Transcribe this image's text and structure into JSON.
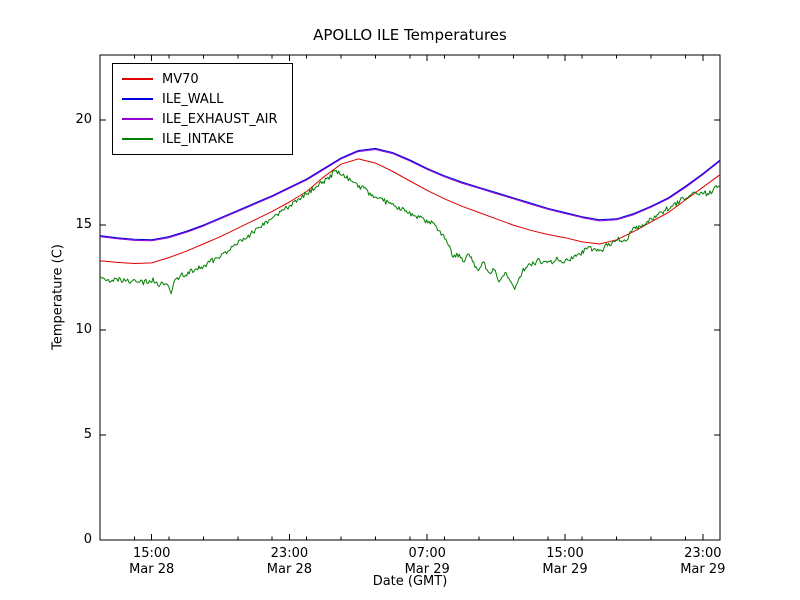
{
  "chart_data": {
    "type": "line",
    "title": "APOLLO ILE Temperatures",
    "xlabel": "Date (GMT)",
    "ylabel": "Temperature (C)",
    "x_unit": "hours since Mar 28 00:00 GMT",
    "xlim": [
      12,
      48
    ],
    "ylim": [
      0,
      23.1
    ],
    "grid": false,
    "legend_position": "upper-left",
    "x_major_ticks": [
      {
        "t": 15,
        "label_time": "15:00",
        "label_date": "Mar 28"
      },
      {
        "t": 23,
        "label_time": "23:00",
        "label_date": "Mar 28"
      },
      {
        "t": 31,
        "label_time": "07:00",
        "label_date": "Mar 29"
      },
      {
        "t": 39,
        "label_time": "15:00",
        "label_date": "Mar 29"
      },
      {
        "t": 47,
        "label_time": "23:00",
        "label_date": "Mar 29"
      }
    ],
    "x_minor_tick_step": 2,
    "y_major_ticks": [
      0,
      5,
      10,
      15,
      20
    ],
    "draw_order": [
      0,
      2,
      1,
      3
    ],
    "series": [
      {
        "name": "MV70",
        "color": "#dd0000",
        "x_start": 12,
        "x_step": 1,
        "values": [
          13.3,
          13.22,
          13.17,
          13.2,
          13.45,
          13.75,
          14.1,
          14.45,
          14.85,
          15.25,
          15.65,
          16.1,
          16.6,
          17.3,
          17.9,
          18.15,
          17.95,
          17.55,
          17.1,
          16.65,
          16.25,
          15.9,
          15.6,
          15.3,
          15.0,
          14.75,
          14.55,
          14.4,
          14.2,
          14.1,
          14.3,
          14.7,
          15.15,
          15.6,
          16.2,
          16.8,
          17.4
        ]
      },
      {
        "name": "ILE_WALL",
        "color": "#0000dd",
        "x_start": 12,
        "x_step": 1,
        "values": [
          14.5,
          14.4,
          14.32,
          14.3,
          14.45,
          14.7,
          15.0,
          15.35,
          15.7,
          16.05,
          16.4,
          16.8,
          17.2,
          17.7,
          18.2,
          18.55,
          18.65,
          18.45,
          18.1,
          17.7,
          17.35,
          17.05,
          16.8,
          16.55,
          16.3,
          16.05,
          15.8,
          15.6,
          15.4,
          15.25,
          15.3,
          15.55,
          15.9,
          16.3,
          16.85,
          17.45,
          18.1
        ]
      },
      {
        "name": "ILE_EXHAUST_AIR",
        "color": "#9400d3",
        "x_start": 12,
        "x_step": 1,
        "values": [
          14.45,
          14.35,
          14.27,
          14.25,
          14.4,
          14.65,
          14.95,
          15.3,
          15.65,
          16.0,
          16.35,
          16.75,
          17.15,
          17.65,
          18.15,
          18.5,
          18.6,
          18.4,
          18.05,
          17.65,
          17.3,
          17.0,
          16.75,
          16.5,
          16.25,
          16.0,
          15.75,
          15.55,
          15.35,
          15.2,
          15.25,
          15.5,
          15.85,
          16.25,
          16.8,
          17.4,
          18.05
        ]
      },
      {
        "name": "ILE_INTAKE",
        "color": "#007f00",
        "noise": {
          "amplitude": 0.13,
          "seed": 42,
          "step": 0.07
        },
        "points": [
          [
            12,
            12.45
          ],
          [
            12.5,
            12.3
          ],
          [
            13,
            12.45
          ],
          [
            13.5,
            12.3
          ],
          [
            14,
            12.4
          ],
          [
            14.5,
            12.25
          ],
          [
            15,
            12.4
          ],
          [
            15.5,
            12.15
          ],
          [
            15.9,
            12.3
          ],
          [
            16.1,
            11.75
          ],
          [
            16.4,
            12.45
          ],
          [
            17,
            12.7
          ],
          [
            17.5,
            12.85
          ],
          [
            18,
            13.05
          ],
          [
            18.5,
            13.3
          ],
          [
            19,
            13.5
          ],
          [
            19.5,
            13.8
          ],
          [
            20,
            14.1
          ],
          [
            20.5,
            14.4
          ],
          [
            21,
            14.7
          ],
          [
            21.5,
            15.0
          ],
          [
            22,
            15.3
          ],
          [
            22.5,
            15.6
          ],
          [
            23,
            15.9
          ],
          [
            23.5,
            16.2
          ],
          [
            24,
            16.5
          ],
          [
            24.5,
            16.8
          ],
          [
            25,
            17.1
          ],
          [
            25.6,
            17.5
          ],
          [
            26,
            17.45
          ],
          [
            26.5,
            17.15
          ],
          [
            27,
            16.9
          ],
          [
            27.5,
            16.6
          ],
          [
            28,
            16.35
          ],
          [
            28.5,
            16.15
          ],
          [
            29,
            15.95
          ],
          [
            29.5,
            15.75
          ],
          [
            30,
            15.55
          ],
          [
            30.5,
            15.35
          ],
          [
            31,
            15.2
          ],
          [
            31.5,
            14.95
          ],
          [
            31.8,
            14.6
          ],
          [
            32.2,
            14.1
          ],
          [
            32.5,
            13.45
          ],
          [
            32.8,
            13.6
          ],
          [
            33.1,
            13.2
          ],
          [
            33.4,
            13.6
          ],
          [
            33.7,
            13.15
          ],
          [
            34,
            12.85
          ],
          [
            34.3,
            13.25
          ],
          [
            34.6,
            12.6
          ],
          [
            34.9,
            12.95
          ],
          [
            35.2,
            12.25
          ],
          [
            35.5,
            12.7
          ],
          [
            35.8,
            12.35
          ],
          [
            36.1,
            11.85
          ],
          [
            36.4,
            12.6
          ],
          [
            36.7,
            13.0
          ],
          [
            37,
            13.1
          ],
          [
            37.5,
            13.3
          ],
          [
            38,
            13.2
          ],
          [
            38.5,
            13.35
          ],
          [
            39,
            13.3
          ],
          [
            39.5,
            13.45
          ],
          [
            40,
            13.7
          ],
          [
            40.5,
            13.9
          ],
          [
            41,
            13.75
          ],
          [
            41.5,
            14.05
          ],
          [
            42,
            14.35
          ],
          [
            42.5,
            14.25
          ],
          [
            43,
            14.8
          ],
          [
            43.5,
            15.0
          ],
          [
            44,
            15.3
          ],
          [
            44.5,
            15.55
          ],
          [
            45,
            15.8
          ],
          [
            45.5,
            16.05
          ],
          [
            46,
            16.3
          ],
          [
            46.5,
            16.45
          ],
          [
            47,
            16.6
          ],
          [
            47.3,
            16.4
          ],
          [
            47.7,
            16.85
          ],
          [
            48,
            16.95
          ]
        ]
      }
    ]
  }
}
